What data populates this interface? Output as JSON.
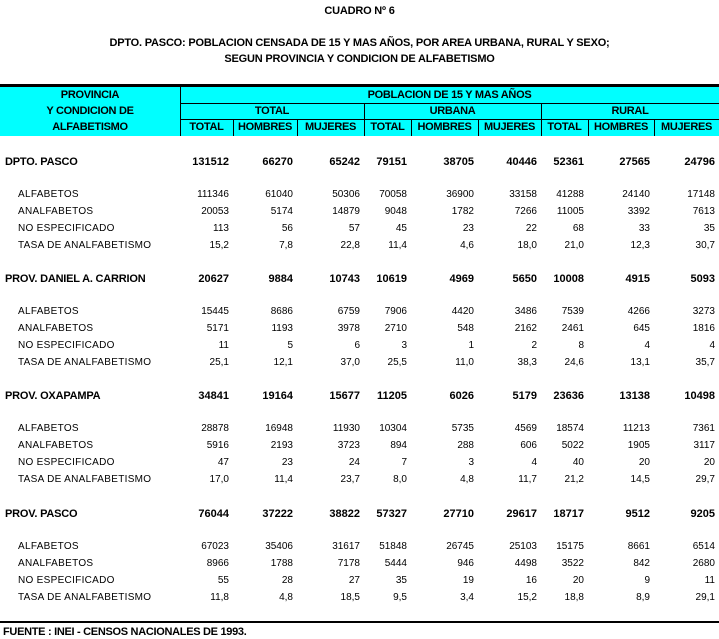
{
  "title": "CUADRO Nº 6",
  "subtitle_line1": "DPTO. PASCO: POBLACION CENSADA DE 15 Y MAS AÑOS, POR AREA URBANA, RURAL Y SEXO;",
  "subtitle_line2": "SEGUN PROVINCIA Y CONDICION DE ALFABETISMO",
  "header": {
    "stub": [
      "PROVINCIA",
      "Y CONDICION DE",
      "ALFABETISMO"
    ],
    "group": "POBLACION DE 15 Y MAS AÑOS",
    "areas": [
      "TOTAL",
      "URBANA",
      "RURAL"
    ],
    "columns": [
      "TOTAL",
      "HOMBRES",
      "MUJERES",
      "TOTAL",
      "HOMBRES",
      "MUJERES",
      "TOTAL",
      "HOMBRES",
      "MUJERES"
    ],
    "header_color": "#00ffff"
  },
  "sections": [
    {
      "name": "DPTO. PASCO",
      "values": [
        "131512",
        "66270",
        "65242",
        "79151",
        "38705",
        "40446",
        "52361",
        "27565",
        "24796"
      ],
      "rows": [
        {
          "label": "ALFABETOS",
          "values": [
            "111346",
            "61040",
            "50306",
            "70058",
            "36900",
            "33158",
            "41288",
            "24140",
            "17148"
          ]
        },
        {
          "label": "ANALFABETOS",
          "values": [
            "20053",
            "5174",
            "14879",
            "9048",
            "1782",
            "7266",
            "11005",
            "3392",
            "7613"
          ]
        },
        {
          "label": "NO ESPECIFICADO",
          "values": [
            "113",
            "56",
            "57",
            "45",
            "23",
            "22",
            "68",
            "33",
            "35"
          ]
        },
        {
          "label": "TASA DE ANALFABETISMO",
          "values": [
            "15,2",
            "7,8",
            "22,8",
            "11,4",
            "4,6",
            "18,0",
            "21,0",
            "12,3",
            "30,7"
          ]
        }
      ]
    },
    {
      "name": "PROV. DANIEL A. CARRION",
      "values": [
        "20627",
        "9884",
        "10743",
        "10619",
        "4969",
        "5650",
        "10008",
        "4915",
        "5093"
      ],
      "rows": [
        {
          "label": "ALFABETOS",
          "values": [
            "15445",
            "8686",
            "6759",
            "7906",
            "4420",
            "3486",
            "7539",
            "4266",
            "3273"
          ]
        },
        {
          "label": "ANALFABETOS",
          "values": [
            "5171",
            "1193",
            "3978",
            "2710",
            "548",
            "2162",
            "2461",
            "645",
            "1816"
          ]
        },
        {
          "label": "NO ESPECIFICADO",
          "values": [
            "11",
            "5",
            "6",
            "3",
            "1",
            "2",
            "8",
            "4",
            "4"
          ]
        },
        {
          "label": "TASA DE ANALFABETISMO",
          "values": [
            "25,1",
            "12,1",
            "37,0",
            "25,5",
            "11,0",
            "38,3",
            "24,6",
            "13,1",
            "35,7"
          ]
        }
      ]
    },
    {
      "name": "PROV. OXAPAMPA",
      "values": [
        "34841",
        "19164",
        "15677",
        "11205",
        "6026",
        "5179",
        "23636",
        "13138",
        "10498"
      ],
      "rows": [
        {
          "label": "ALFABETOS",
          "values": [
            "28878",
            "16948",
            "11930",
            "10304",
            "5735",
            "4569",
            "18574",
            "11213",
            "7361"
          ]
        },
        {
          "label": "ANALFABETOS",
          "values": [
            "5916",
            "2193",
            "3723",
            "894",
            "288",
            "606",
            "5022",
            "1905",
            "3117"
          ]
        },
        {
          "label": "NO ESPECIFICADO",
          "values": [
            "47",
            "23",
            "24",
            "7",
            "3",
            "4",
            "40",
            "20",
            "20"
          ]
        },
        {
          "label": "TASA DE ANALFABETISMO",
          "values": [
            "17,0",
            "11,4",
            "23,7",
            "8,0",
            "4,8",
            "11,7",
            "21,2",
            "14,5",
            "29,7"
          ]
        }
      ]
    },
    {
      "name": "PROV. PASCO",
      "values": [
        "76044",
        "37222",
        "38822",
        "57327",
        "27710",
        "29617",
        "18717",
        "9512",
        "9205"
      ],
      "rows": [
        {
          "label": "ALFABETOS",
          "values": [
            "67023",
            "35406",
            "31617",
            "51848",
            "26745",
            "25103",
            "15175",
            "8661",
            "6514"
          ]
        },
        {
          "label": "ANALFABETOS",
          "values": [
            "8966",
            "1788",
            "7178",
            "5444",
            "946",
            "4498",
            "3522",
            "842",
            "2680"
          ]
        },
        {
          "label": "NO ESPECIFICADO",
          "values": [
            "55",
            "28",
            "27",
            "35",
            "19",
            "16",
            "20",
            "9",
            "11"
          ]
        },
        {
          "label": "TASA DE ANALFABETISMO",
          "values": [
            "11,8",
            "4,8",
            "18,5",
            "9,5",
            "3,4",
            "15,2",
            "18,8",
            "8,9",
            "29,1"
          ]
        }
      ]
    }
  ],
  "footer": "FUENTE : INEI - CENSOS NACIONALES DE 1993."
}
